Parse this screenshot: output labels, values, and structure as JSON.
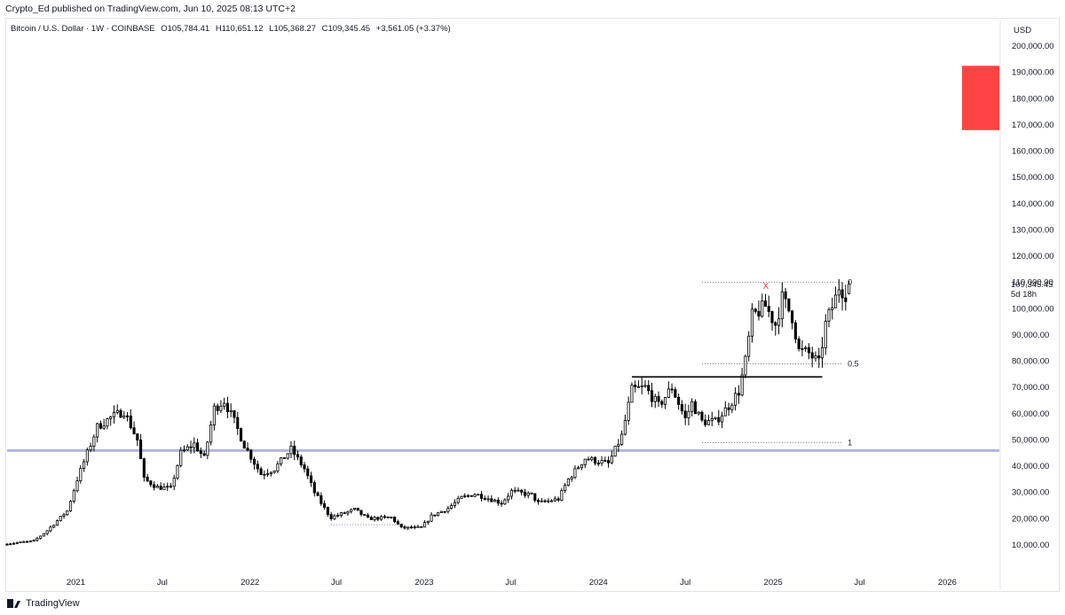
{
  "header": {
    "published": "Crypto_Ed published on TradingView.com, Jun 10, 2025 08:13 UTC+2"
  },
  "legend": {
    "symbol": "Bitcoin / U.S. Dollar · 1W · COINBASE",
    "open": "O105,784.41",
    "high": "H110,651.12",
    "low": "L105,368.27",
    "close": "C109,345.45",
    "change": "+3,561.05 (+3.37%)"
  },
  "currency": "USD",
  "last_price": {
    "value": "109,345.45",
    "countdown": "5d 18h"
  },
  "footer": {
    "brand": "TradingView"
  },
  "chart_data": {
    "type": "candlestick",
    "y_axis": {
      "min": 5000,
      "max": 205000,
      "ticks": [
        10000,
        20000,
        30000,
        40000,
        50000,
        60000,
        70000,
        80000,
        90000,
        100000,
        110000,
        120000,
        130000,
        140000,
        150000,
        160000,
        170000,
        180000,
        190000,
        200000
      ],
      "tick_labels": [
        "10,000.00",
        "20,000.00",
        "30,000.00",
        "40,000.00",
        "50,000.00",
        "60,000.00",
        "70,000.00",
        "80,000.00",
        "90,000.00",
        "100,000.00",
        "110,000.00",
        "120,000.00",
        "130,000.00",
        "140,000.00",
        "150,000.00",
        "160,000.00",
        "170,000.00",
        "180,000.00",
        "190,000.00",
        "200,000.00"
      ]
    },
    "x_axis": {
      "start": "2020-08-10",
      "end": "2026-04-20",
      "ticks": [
        {
          "date": "2021-01-01",
          "label": "2021"
        },
        {
          "date": "2021-07-01",
          "label": "Jul"
        },
        {
          "date": "2022-01-01",
          "label": "2022"
        },
        {
          "date": "2022-07-01",
          "label": "Jul"
        },
        {
          "date": "2023-01-01",
          "label": "2023"
        },
        {
          "date": "2023-07-01",
          "label": "Jul"
        },
        {
          "date": "2024-01-01",
          "label": "2024"
        },
        {
          "date": "2024-07-01",
          "label": "Jul"
        },
        {
          "date": "2025-01-01",
          "label": "2025"
        },
        {
          "date": "2025-07-01",
          "label": "Jul"
        },
        {
          "date": "2026-01-01",
          "label": "2026"
        }
      ]
    },
    "close_anchors": [
      [
        "2020-08-10",
        10500
      ],
      [
        "2020-10-05",
        11500
      ],
      [
        "2020-11-02",
        15500
      ],
      [
        "2020-12-14",
        23000
      ],
      [
        "2021-01-04",
        35000
      ],
      [
        "2021-02-15",
        55000
      ],
      [
        "2021-03-15",
        58500
      ],
      [
        "2021-04-12",
        61000
      ],
      [
        "2021-05-10",
        50000
      ],
      [
        "2021-05-24",
        35000
      ],
      [
        "2021-06-21",
        32000
      ],
      [
        "2021-07-19",
        31500
      ],
      [
        "2021-08-09",
        45000
      ],
      [
        "2021-09-06",
        48500
      ],
      [
        "2021-09-27",
        43000
      ],
      [
        "2021-10-18",
        62000
      ],
      [
        "2021-11-08",
        65000
      ],
      [
        "2021-11-29",
        57000
      ],
      [
        "2021-12-20",
        48000
      ],
      [
        "2022-01-24",
        37000
      ],
      [
        "2022-02-21",
        39000
      ],
      [
        "2022-03-28",
        46500
      ],
      [
        "2022-04-25",
        39000
      ],
      [
        "2022-05-16",
        30000
      ],
      [
        "2022-06-13",
        22000
      ],
      [
        "2022-06-20",
        20500
      ],
      [
        "2022-08-08",
        23500
      ],
      [
        "2022-09-05",
        20000
      ],
      [
        "2022-10-24",
        20500
      ],
      [
        "2022-11-14",
        16500
      ],
      [
        "2022-12-26",
        16600
      ],
      [
        "2023-01-16",
        21000
      ],
      [
        "2023-02-20",
        24000
      ],
      [
        "2023-03-20",
        28000
      ],
      [
        "2023-04-17",
        29500
      ],
      [
        "2023-06-12",
        26000
      ],
      [
        "2023-07-03",
        30500
      ],
      [
        "2023-08-14",
        29000
      ],
      [
        "2023-08-28",
        26000
      ],
      [
        "2023-10-09",
        27500
      ],
      [
        "2023-10-30",
        35000
      ],
      [
        "2023-12-04",
        43000
      ],
      [
        "2024-01-22",
        41000
      ],
      [
        "2024-02-19",
        51500
      ],
      [
        "2024-03-11",
        69000
      ],
      [
        "2024-04-08",
        70000
      ],
      [
        "2024-05-06",
        63000
      ],
      [
        "2024-06-03",
        70000
      ],
      [
        "2024-07-01",
        58000
      ],
      [
        "2024-07-15",
        64000
      ],
      [
        "2024-08-05",
        57000
      ],
      [
        "2024-09-02",
        57000
      ],
      [
        "2024-09-30",
        63000
      ],
      [
        "2024-10-21",
        68500
      ],
      [
        "2024-11-04",
        80000
      ],
      [
        "2024-11-18",
        97000
      ],
      [
        "2024-12-16",
        101000
      ],
      [
        "2025-01-06",
        94000
      ],
      [
        "2025-01-20",
        104000
      ],
      [
        "2025-02-10",
        97000
      ],
      [
        "2025-02-24",
        84000
      ],
      [
        "2025-03-17",
        83000
      ],
      [
        "2025-04-07",
        79000
      ],
      [
        "2025-04-21",
        94000
      ],
      [
        "2025-05-12",
        104000
      ],
      [
        "2025-05-19",
        108500
      ],
      [
        "2025-06-02",
        105784
      ],
      [
        "2025-06-09",
        109345
      ]
    ],
    "last_candle": {
      "open": 105784.41,
      "high": 110651.12,
      "low": 105368.27,
      "close": 109345.45
    },
    "fib": {
      "levels": [
        {
          "label": "0",
          "price": 110000
        },
        {
          "label": "0.5",
          "price": 79000
        },
        {
          "label": "1",
          "price": 49000
        }
      ],
      "start": "2024-08-05",
      "end": "2025-05-26"
    },
    "support_line": {
      "price": 46000,
      "color": "#b2b5d9"
    },
    "resistance_line": {
      "price": 74000,
      "start": "2024-03-11",
      "end": "2025-04-14",
      "color": "#000000"
    },
    "range_line": {
      "price": 17700,
      "start": "2022-06-20",
      "end": "2022-11-14"
    },
    "target_box": {
      "from": 168000,
      "to": 192500,
      "color": "#ff4444"
    },
    "x_marker": {
      "date": "2024-12-16",
      "price": 108500,
      "label": "X",
      "color": "#f23645"
    },
    "colors": {
      "up": "#ffffff",
      "down": "#000000",
      "wick": "#000000"
    }
  }
}
